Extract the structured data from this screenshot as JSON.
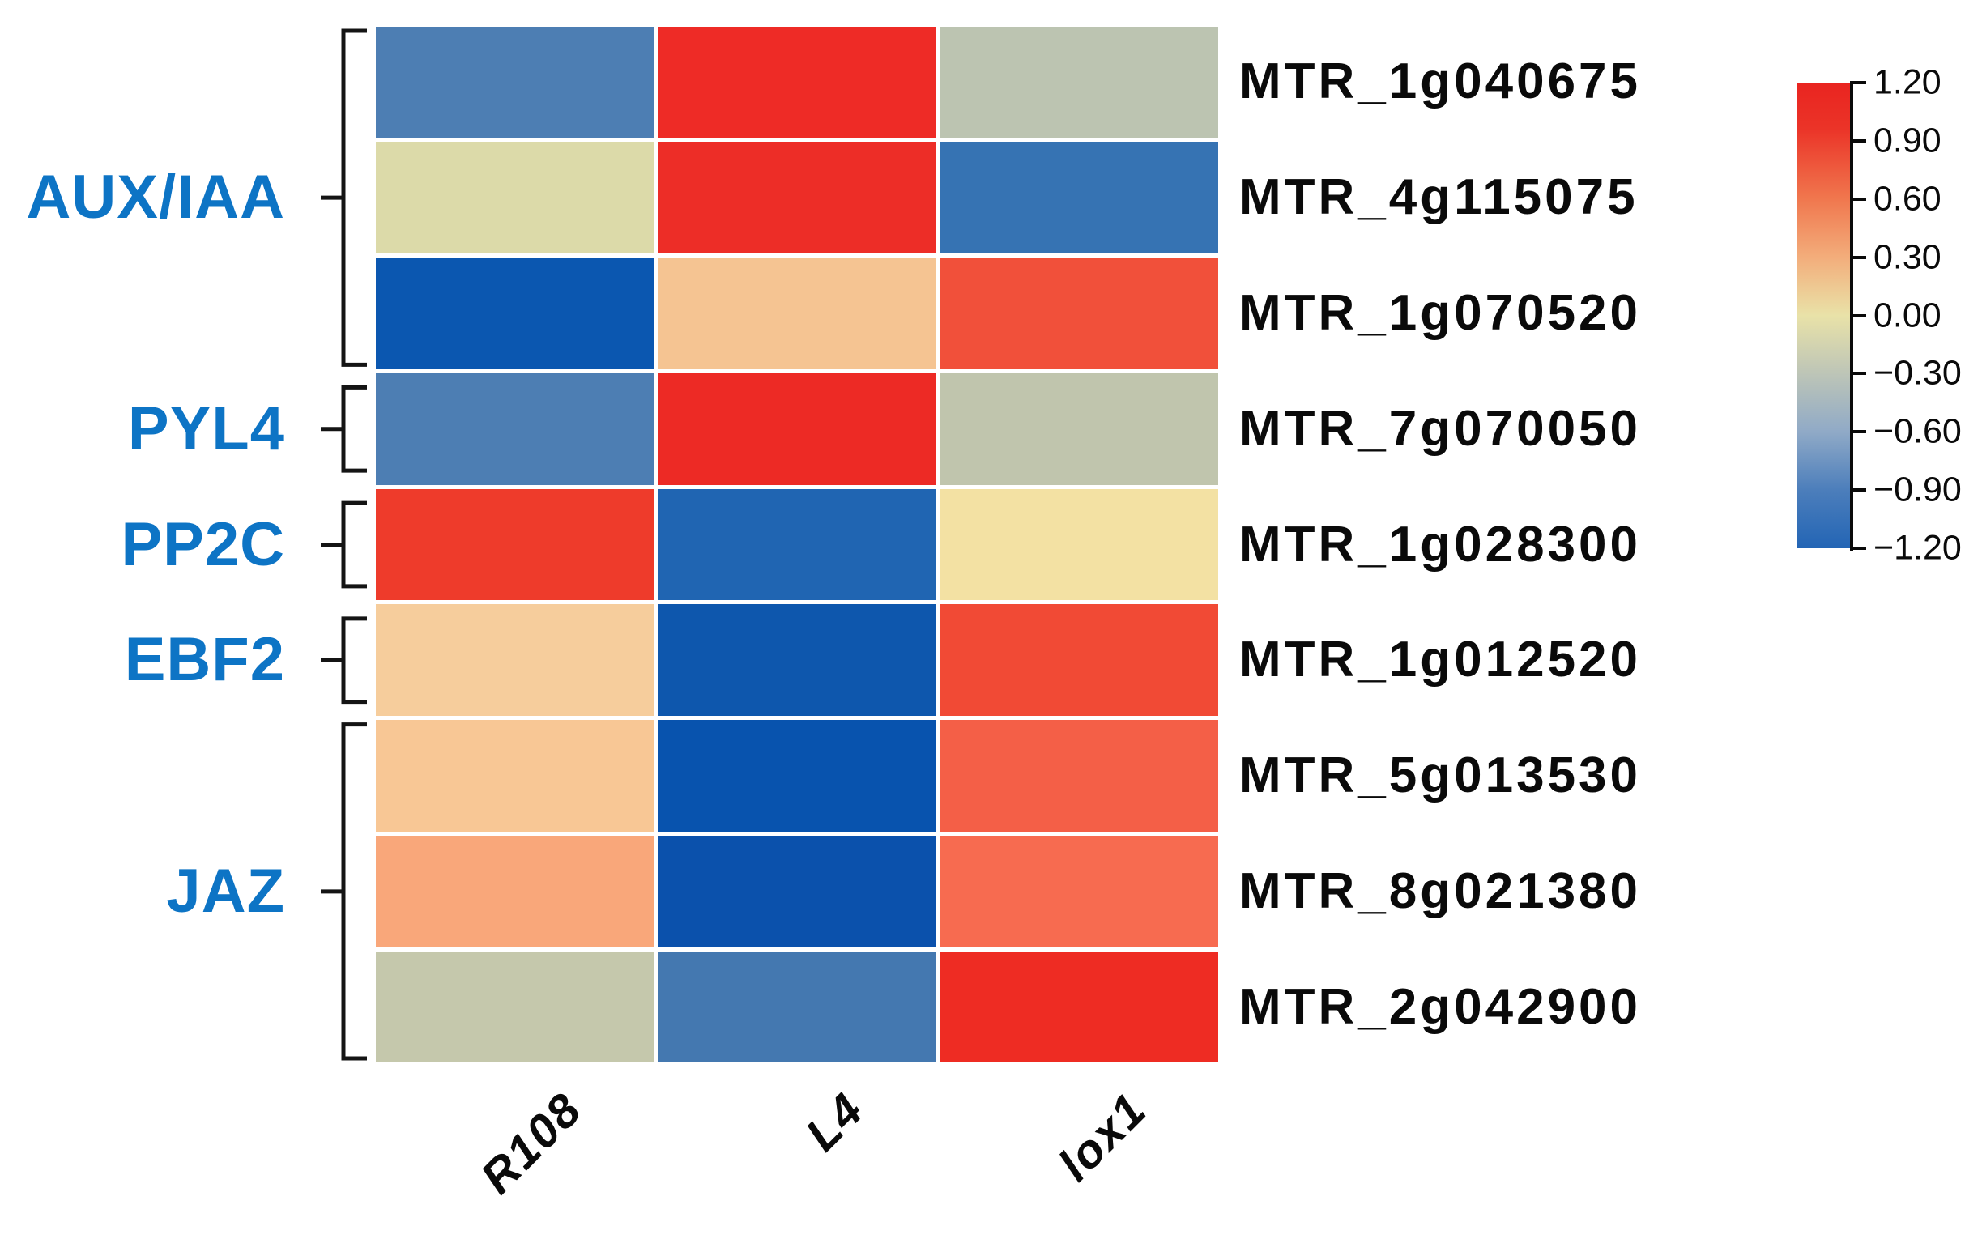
{
  "styles": {
    "group_label_color": "#0d74c5",
    "text_color": "#0a0a0a",
    "bracket_color": "#141414",
    "background": "#ffffff"
  },
  "chart_data": {
    "type": "heatmap",
    "title": "",
    "columns": [
      "R108",
      "L4",
      "lox1"
    ],
    "rows": [
      "MTR_1g040675",
      "MTR_4g115075",
      "MTR_1g070520",
      "MTR_7g070050",
      "MTR_1g028300",
      "MTR_1g012520",
      "MTR_5g013530",
      "MTR_8g021380",
      "MTR_2g042900"
    ],
    "row_groups": [
      {
        "label": "AUX/IAA",
        "rows": [
          "MTR_1g040675",
          "MTR_4g115075",
          "MTR_1g070520"
        ]
      },
      {
        "label": "PYL4",
        "rows": [
          "MTR_7g070050"
        ]
      },
      {
        "label": "PP2C",
        "rows": [
          "MTR_1g028300"
        ]
      },
      {
        "label": "EBF2",
        "rows": [
          "MTR_1g012520"
        ]
      },
      {
        "label": "JAZ",
        "rows": [
          "MTR_5g013530",
          "MTR_8g021380",
          "MTR_2g042900"
        ]
      }
    ],
    "values": [
      [
        -0.85,
        1.2,
        -0.35
      ],
      [
        -0.1,
        1.15,
        -1.0
      ],
      [
        -1.2,
        0.25,
        0.8
      ],
      [
        -0.85,
        1.2,
        -0.33
      ],
      [
        1.0,
        -1.15,
        0.03
      ],
      [
        0.22,
        -1.2,
        0.82
      ],
      [
        0.25,
        -1.2,
        0.75
      ],
      [
        0.42,
        -1.2,
        0.65
      ],
      [
        -0.3,
        -0.95,
        1.2
      ]
    ],
    "cell_colors": [
      [
        "#4d7eb3",
        "#ee2b26",
        "#bcc4b1"
      ],
      [
        "#dcdaa9",
        "#ed2d27",
        "#3673b3"
      ],
      [
        "#0b57b0",
        "#f5c492",
        "#f1503a"
      ],
      [
        "#4d7eb3",
        "#ed2a25",
        "#c0c5ad"
      ],
      [
        "#ee3b2b",
        "#2065b2",
        "#f3e1a3"
      ],
      [
        "#f6cd9c",
        "#0e57ad",
        "#f14a35"
      ],
      [
        "#f8c795",
        "#0853ae",
        "#f45f47"
      ],
      [
        "#f9a77a",
        "#0b51ac",
        "#f76b50"
      ],
      [
        "#c5c8ac",
        "#4478b0",
        "#ee2c23"
      ]
    ],
    "colorbar": {
      "min": -1.2,
      "max": 1.2,
      "tick_labels": [
        "1.20",
        "0.90",
        "0.60",
        "0.30",
        "0.00",
        "−0.30",
        "−0.60",
        "−0.90",
        "−1.20"
      ],
      "gradient_stops": [
        {
          "pos": 0.0,
          "color": "#e92420"
        },
        {
          "pos": 0.1,
          "color": "#eb3428"
        },
        {
          "pos": 0.25,
          "color": "#f0774e"
        },
        {
          "pos": 0.375,
          "color": "#f3ad7b"
        },
        {
          "pos": 0.5,
          "color": "#e9e2a8"
        },
        {
          "pos": 0.625,
          "color": "#bdc5b7"
        },
        {
          "pos": 0.75,
          "color": "#90aac7"
        },
        {
          "pos": 0.875,
          "color": "#4c7ebb"
        },
        {
          "pos": 1.0,
          "color": "#2365b5"
        }
      ],
      "legend_position": "right"
    },
    "layout_hints": {
      "x_tick_rotation_deg": 45,
      "grid": false,
      "gene_labels_position": "right",
      "group_labels_position": "left"
    }
  }
}
